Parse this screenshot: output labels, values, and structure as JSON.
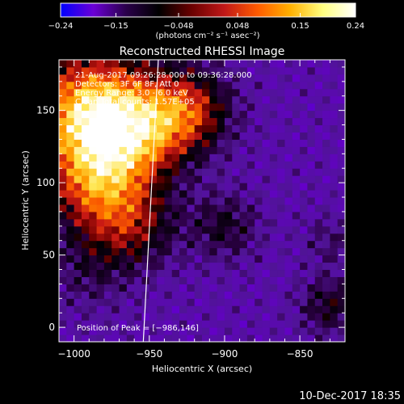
{
  "colorbar": {
    "ticks": [
      "-0.24",
      "-0.15",
      "-0.048",
      "0.048",
      "0.15",
      "0.24"
    ],
    "unit_label": "(photons cm⁻² s⁻¹ asec⁻²)",
    "colors": [
      "#0000ff",
      "#6b00d6",
      "#2a004a",
      "#000000",
      "#6a0000",
      "#c01818",
      "#ff5a00",
      "#ffb000",
      "#ffff80",
      "#ffffff"
    ]
  },
  "chart_data": {
    "type": "heatmap",
    "title": "Reconstructed RHESSI Image",
    "xlabel": "Heliocentric X (arcsec)",
    "ylabel": "Heliocentric Y (arcsec)",
    "xlim": [
      -1010,
      -820
    ],
    "ylim": [
      -10,
      185
    ],
    "x_ticks": [
      -1000,
      -950,
      -900,
      -850
    ],
    "y_ticks": [
      0,
      50,
      100,
      150
    ],
    "x_tick_labels": [
      "−1000",
      "−950",
      "−900",
      "−850"
    ],
    "y_tick_labels": [
      "0",
      "50",
      "100",
      "150"
    ],
    "value_range": [
      -0.24,
      0.24
    ],
    "peak_position": [
      -986,
      146
    ],
    "limb_line": {
      "x1": -944,
      "y1": 185,
      "x2": -954,
      "y2": -10
    },
    "annotations": [
      "21-Aug-2017 09:26:28.000 to 09:36:28.000",
      "Detectors: 3F 6F 8F, Att 0",
      "Energy Range: 3.0 - 6.0 keV",
      "Clean   Total counts: 1.57E+05"
    ],
    "peak_label": "Position of Peak = [−986,146]"
  },
  "footer": {
    "timestamp": "10-Dec-2017 18:35"
  }
}
